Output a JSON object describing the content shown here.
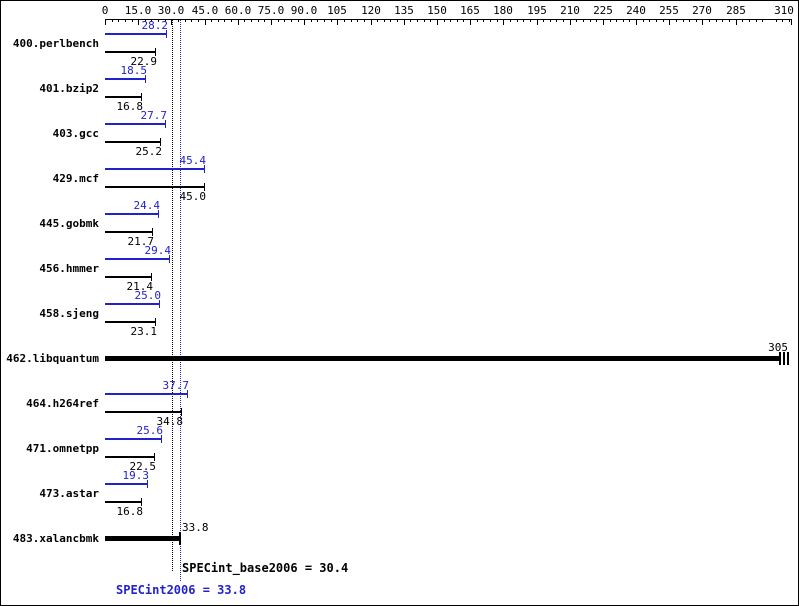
{
  "chart_data": {
    "type": "bar",
    "orientation": "horizontal",
    "title": "",
    "axis": {
      "min": 0,
      "max": 310,
      "minor_tick_step": 3,
      "major_ticks": [
        {
          "v": 0,
          "label": "0"
        },
        {
          "v": 15,
          "label": "15.0"
        },
        {
          "v": 30,
          "label": "30.0"
        },
        {
          "v": 45,
          "label": "45.0"
        },
        {
          "v": 60,
          "label": "60.0"
        },
        {
          "v": 75,
          "label": "75.0"
        },
        {
          "v": 90,
          "label": "90.0"
        },
        {
          "v": 105,
          "label": "105"
        },
        {
          "v": 120,
          "label": "120"
        },
        {
          "v": 135,
          "label": "135"
        },
        {
          "v": 150,
          "label": "150"
        },
        {
          "v": 165,
          "label": "165"
        },
        {
          "v": 180,
          "label": "180"
        },
        {
          "v": 195,
          "label": "195"
        },
        {
          "v": 210,
          "label": "210"
        },
        {
          "v": 225,
          "label": "225"
        },
        {
          "v": 240,
          "label": "240"
        },
        {
          "v": 255,
          "label": "255"
        },
        {
          "v": 270,
          "label": "270"
        },
        {
          "v": 285,
          "label": "285"
        },
        {
          "v": 310,
          "label": "310"
        }
      ]
    },
    "benchmarks": [
      {
        "name": "400.perlbench",
        "peak": 28.2,
        "peak_label": "28.2",
        "base": 22.9,
        "base_label": "22.9"
      },
      {
        "name": "401.bzip2",
        "peak": 18.5,
        "peak_label": "18.5",
        "base": 16.8,
        "base_label": "16.8"
      },
      {
        "name": "403.gcc",
        "peak": 27.7,
        "peak_label": "27.7",
        "base": 25.2,
        "base_label": "25.2"
      },
      {
        "name": "429.mcf",
        "peak": 45.4,
        "peak_label": "45.4",
        "base": 45.0,
        "base_label": "45.0"
      },
      {
        "name": "445.gobmk",
        "peak": 24.4,
        "peak_label": "24.4",
        "base": 21.7,
        "base_label": "21.7"
      },
      {
        "name": "456.hmmer",
        "peak": 29.4,
        "peak_label": "29.4",
        "base": 21.4,
        "base_label": "21.4"
      },
      {
        "name": "458.sjeng",
        "peak": 25.0,
        "peak_label": "25.0",
        "base": 23.1,
        "base_label": "23.1"
      },
      {
        "name": "462.libquantum",
        "single": 305,
        "single_label": "305",
        "thick": true,
        "overflow": true
      },
      {
        "name": "464.h264ref",
        "peak": 37.7,
        "peak_label": "37.7",
        "base": 34.8,
        "base_label": "34.8"
      },
      {
        "name": "471.omnetpp",
        "peak": 25.6,
        "peak_label": "25.6",
        "base": 22.5,
        "base_label": "22.5"
      },
      {
        "name": "473.astar",
        "peak": 19.3,
        "peak_label": "19.3",
        "base": 16.8,
        "base_label": "16.8"
      },
      {
        "name": "483.xalancbmk",
        "single": 33.8,
        "single_label": "33.8",
        "thick": true
      }
    ],
    "summary": {
      "base": {
        "label": "SPECint_base2006 = 30.4",
        "value": 30.4
      },
      "peak": {
        "label": "SPECint2006 = 33.8",
        "value": 33.8
      }
    },
    "colors": {
      "peak": "#2222cc",
      "base": "#000000"
    }
  }
}
